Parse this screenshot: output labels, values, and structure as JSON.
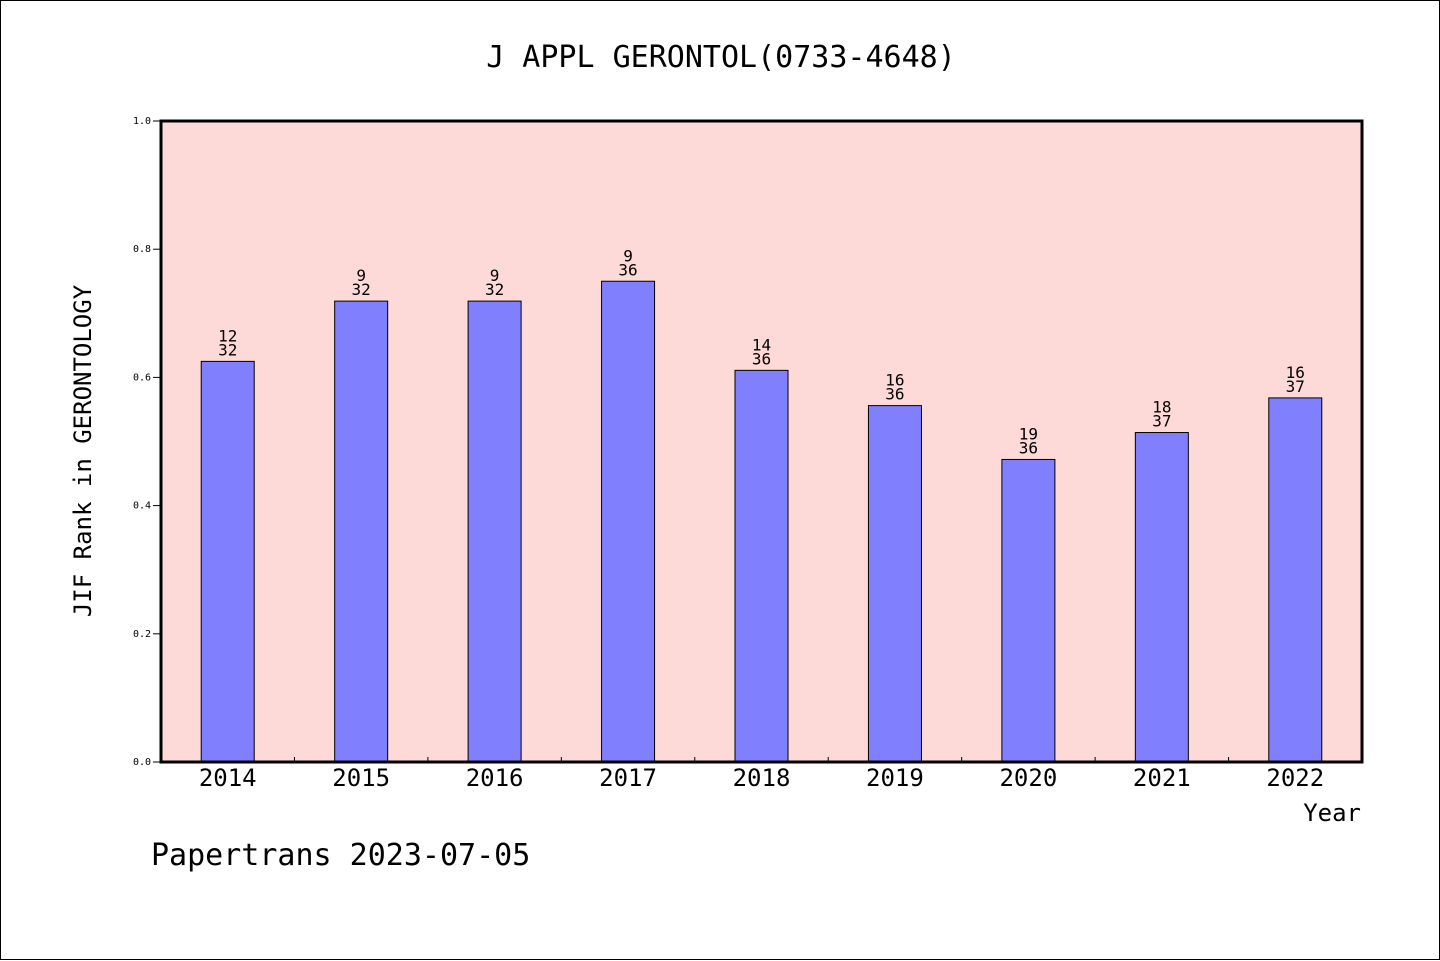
{
  "chart_data": {
    "type": "bar",
    "title": "J APPL GERONTOL(0733-4648)",
    "xlabel": "Year",
    "ylabel": "JIF Rank in GERONTOLOGY",
    "categories": [
      "2014",
      "2015",
      "2016",
      "2017",
      "2018",
      "2019",
      "2020",
      "2021",
      "2022"
    ],
    "values": [
      0.625,
      0.719,
      0.719,
      0.75,
      0.611,
      0.556,
      0.472,
      0.514,
      0.568
    ],
    "rank_labels": [
      {
        "rank": "12",
        "total": "32"
      },
      {
        "rank": "9",
        "total": "32"
      },
      {
        "rank": "9",
        "total": "32"
      },
      {
        "rank": "9",
        "total": "36"
      },
      {
        "rank": "14",
        "total": "36"
      },
      {
        "rank": "16",
        "total": "36"
      },
      {
        "rank": "19",
        "total": "36"
      },
      {
        "rank": "18",
        "total": "37"
      },
      {
        "rank": "16",
        "total": "37"
      }
    ],
    "yticks": [
      "0.0",
      "0.2",
      "0.4",
      "0.6",
      "0.8",
      "1.0"
    ],
    "ylim": [
      0,
      1.0
    ],
    "grid": false,
    "colors": {
      "bar": "#8080ff",
      "plot_background": "#fdd9d7",
      "axes": "#000000"
    }
  },
  "footer": "Papertrans 2023-07-05"
}
